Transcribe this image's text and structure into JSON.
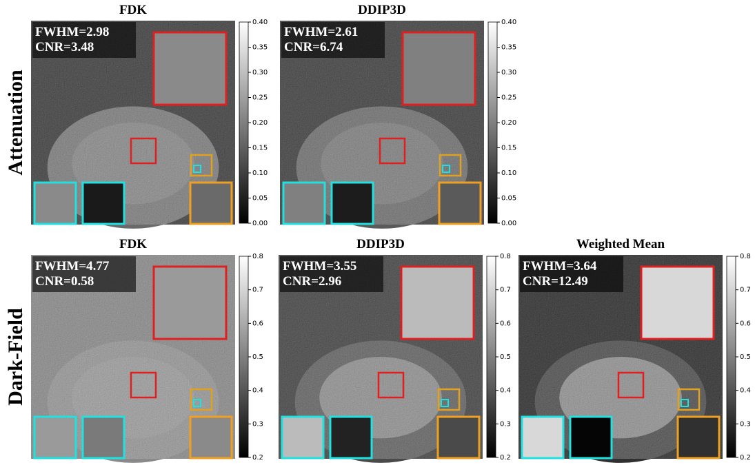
{
  "rows": [
    {
      "label": "Attenuation",
      "panels": [
        {
          "title": "FDK",
          "metrics": [
            "FWHM=2.98",
            "CNR=3.48"
          ],
          "colorbar_ticks": [
            "0.00",
            "0.05",
            "0.10",
            "0.15",
            "0.20",
            "0.25",
            "0.30",
            "0.35",
            "0.40"
          ]
        },
        {
          "title": "DDIP3D",
          "metrics": [
            "FWHM=2.61",
            "CNR=6.74"
          ],
          "colorbar_ticks": [
            "0.00",
            "0.05",
            "0.10",
            "0.15",
            "0.20",
            "0.25",
            "0.30",
            "0.35",
            "0.40"
          ]
        }
      ]
    },
    {
      "label": "Dark-Field",
      "panels": [
        {
          "title": "FDK",
          "metrics": [
            "FWHM=4.77",
            "CNR=0.58"
          ],
          "colorbar_ticks": [
            "0.2",
            "0.3",
            "0.4",
            "0.5",
            "0.6",
            "0.7",
            "0.8"
          ]
        },
        {
          "title": "DDIP3D",
          "metrics": [
            "FWHM=3.55",
            "CNR=2.96"
          ],
          "colorbar_ticks": [
            "0.2",
            "0.3",
            "0.4",
            "0.5",
            "0.6",
            "0.7",
            "0.8"
          ]
        },
        {
          "title": "Weighted Mean",
          "metrics": [
            "FWHM=3.64",
            "CNR=12.49"
          ],
          "colorbar_ticks": [
            "0.2",
            "0.3",
            "0.4",
            "0.5",
            "0.6",
            "0.7",
            "0.8"
          ]
        }
      ]
    }
  ]
}
